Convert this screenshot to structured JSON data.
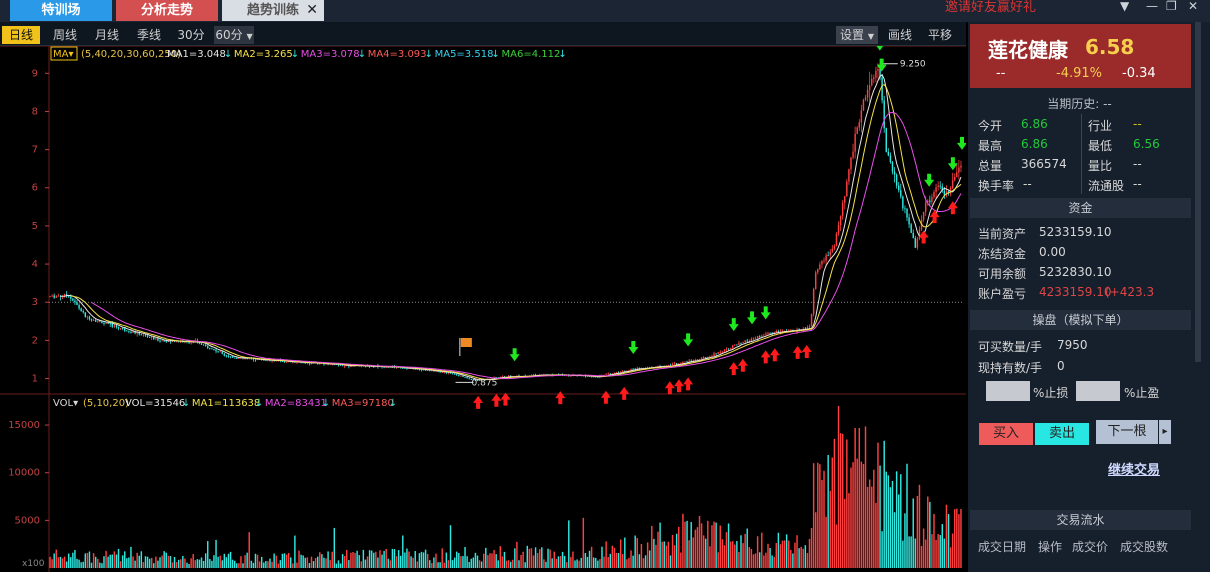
{
  "top_tabs": {
    "special_training": "特训场",
    "analysis": "分析走势",
    "trend_training": "趋势训练",
    "close": "✕"
  },
  "invite_text": "邀请好友赢好礼",
  "window_controls": {
    "menu": "▼",
    "minimize": "—",
    "restore": "❐",
    "close": "✕"
  },
  "period_tabs": [
    "日线",
    "周线",
    "月线",
    "季线",
    "30分",
    "60分"
  ],
  "toolbar": {
    "settings": "设置",
    "draw": "画线",
    "pan": "平移"
  },
  "chart_data": {
    "type": "candlestick",
    "price_axis": {
      "ticks": [
        "1",
        "2",
        "3",
        "4",
        "5",
        "6",
        "7",
        "8",
        "9"
      ],
      "range": [
        0.7,
        9.4
      ]
    },
    "volume_axis": {
      "ticks": [
        "5000",
        "10000",
        "15000"
      ],
      "range": [
        0,
        17000
      ],
      "unit": "x100"
    },
    "ma_legend": {
      "selector": "MA",
      "params": "(5,40,20,30,60,250)",
      "items": [
        {
          "label": "MA1=3.048",
          "color": "#e8e8e8"
        },
        {
          "label": "MA2=3.265",
          "color": "#f6e24a"
        },
        {
          "label": "MA3=3.078",
          "color": "#e94ee9"
        },
        {
          "label": "MA4=3.093",
          "color": "#ff5a5a"
        },
        {
          "label": "MA5=3.518",
          "color": "#3ad1f0"
        },
        {
          "label": "MA6=4.112",
          "color": "#3ad13a"
        }
      ]
    },
    "vol_legend": {
      "selector": "VOL",
      "params": "(5,10,20)",
      "items": [
        {
          "label": "VOL=31546",
          "color": "#e8e8e8"
        },
        {
          "label": "MA1=113638",
          "color": "#f6e24a"
        },
        {
          "label": "MA2=83431",
          "color": "#e94ee9"
        },
        {
          "label": "MA3=97180",
          "color": "#ff5a5a"
        }
      ]
    },
    "annotations": {
      "high_label": "9.250",
      "low_label": "0.875",
      "dotted_line_value": 3.0
    },
    "price_path": [
      [
        0,
        3.15
      ],
      [
        0.02,
        3.2
      ],
      [
        0.04,
        2.6
      ],
      [
        0.08,
        2.3
      ],
      [
        0.12,
        2.0
      ],
      [
        0.16,
        1.95
      ],
      [
        0.2,
        1.55
      ],
      [
        0.26,
        1.45
      ],
      [
        0.32,
        1.35
      ],
      [
        0.38,
        1.3
      ],
      [
        0.44,
        1.15
      ],
      [
        0.465,
        0.95
      ],
      [
        0.5,
        1.05
      ],
      [
        0.55,
        1.1
      ],
      [
        0.6,
        1.05
      ],
      [
        0.64,
        1.25
      ],
      [
        0.68,
        1.35
      ],
      [
        0.72,
        1.55
      ],
      [
        0.75,
        1.85
      ],
      [
        0.79,
        2.2
      ],
      [
        0.83,
        2.3
      ],
      [
        0.835,
        2.4
      ],
      [
        0.84,
        3.8
      ],
      [
        0.86,
        4.4
      ],
      [
        0.87,
        5.5
      ],
      [
        0.885,
        7.5
      ],
      [
        0.9,
        8.8
      ],
      [
        0.91,
        9.2
      ],
      [
        0.918,
        7.0
      ],
      [
        0.93,
        6.0
      ],
      [
        0.95,
        4.5
      ],
      [
        0.96,
        5.5
      ],
      [
        0.975,
        6.0
      ],
      [
        0.985,
        5.8
      ],
      [
        1.0,
        6.6
      ]
    ],
    "volume_profile": [
      [
        0,
        1200
      ],
      [
        0.2,
        1000
      ],
      [
        0.45,
        1300
      ],
      [
        0.6,
        1500
      ],
      [
        0.7,
        3500
      ],
      [
        0.76,
        2500
      ],
      [
        0.835,
        2000
      ],
      [
        0.84,
        9000
      ],
      [
        0.88,
        12000
      ],
      [
        0.92,
        7000
      ],
      [
        0.96,
        5000
      ],
      [
        1.0,
        4000
      ]
    ],
    "signals_up_red": [
      0.47,
      0.49,
      0.5,
      0.56,
      0.61,
      0.63,
      0.69,
      0.68,
      0.7,
      0.75,
      0.76,
      0.785,
      0.795,
      0.82,
      0.83,
      0.958,
      0.97,
      0.99
    ],
    "signals_down_green": [
      0.51,
      0.64,
      0.7,
      0.75,
      0.77,
      0.785,
      0.91,
      0.912,
      0.964,
      0.99,
      1.0
    ]
  },
  "stock": {
    "name": "莲花健康",
    "price": "6.58",
    "dash": "--",
    "change_pct": "-4.91%",
    "change": "-0.34"
  },
  "quote": {
    "history_label": "当期历史: --",
    "open_label": "今开",
    "open": "6.86",
    "high_label": "最高",
    "high": "6.86",
    "volume_label": "总量",
    "volume": "366574",
    "turnover_label": "换手率",
    "turnover": "--",
    "industry_label": "行业",
    "industry": "--",
    "low_label": "最低",
    "low": "6.56",
    "ratio_label": "量比",
    "ratio": "--",
    "float_label": "流通股",
    "float": "--"
  },
  "funds": {
    "header": "资金",
    "total_label": "当前资产",
    "total": "5233159.10",
    "frozen_label": "冻结资金",
    "frozen": "0.00",
    "available_label": "可用余额",
    "available": "5232830.10",
    "pnl_label": "账户盈亏",
    "pnl": "4233159.10",
    "pnl_delta": "(+423.3"
  },
  "trade": {
    "header": "操盘（模拟下单）",
    "can_buy_label": "可买数量/手",
    "can_buy": "7950",
    "holding_label": "现持有数/手",
    "holding": "0",
    "stop_loss_label": "%止损",
    "take_profit_label": "%止盈",
    "buy": "买入",
    "sell": "卖出",
    "next_bar": "下一根",
    "next_arrow": "▸",
    "continue": "继续交易"
  },
  "journal": {
    "header": "交易流水",
    "columns": [
      "成交日期",
      "操作",
      "成交价",
      "成交股数"
    ]
  },
  "colors": {
    "up": "#ff4040",
    "down": "#2fe8e0",
    "grid": "#6a1c1c",
    "axis_text": "#c24040",
    "bg": "#000000"
  }
}
